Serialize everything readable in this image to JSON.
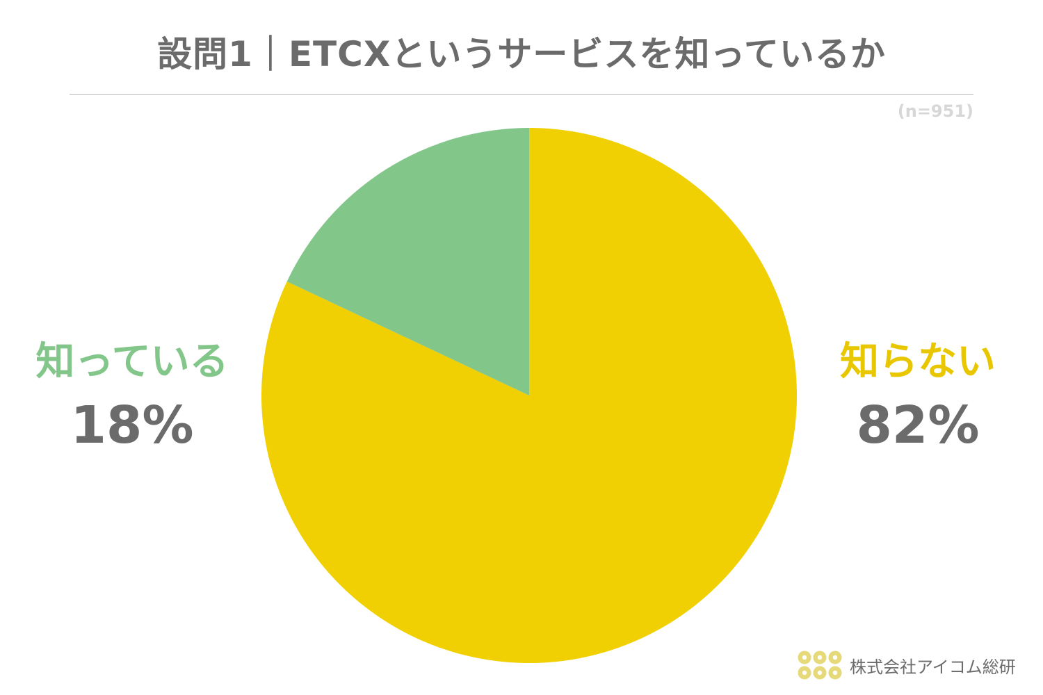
{
  "title": "設問1｜ETCXというサービスを知っているか",
  "sample_size": "(n=951)",
  "brand": {
    "name": "株式会社アイコム総研",
    "mark_icon": "dot-grid-logo-icon",
    "mark_color": "#e6d97a"
  },
  "chart_data": {
    "type": "pie",
    "title": "設問1｜ETCXというサービスを知っているか",
    "start_angle_deg": 0,
    "direction": "clockwise",
    "slices": [
      {
        "label": "知らない",
        "value": 82,
        "display": "82%",
        "color": "#f0d002",
        "label_color": "#e8c700"
      },
      {
        "label": "知っている",
        "value": 18,
        "display": "18%",
        "color": "#82c68a",
        "label_color": "#82c68a"
      }
    ]
  }
}
